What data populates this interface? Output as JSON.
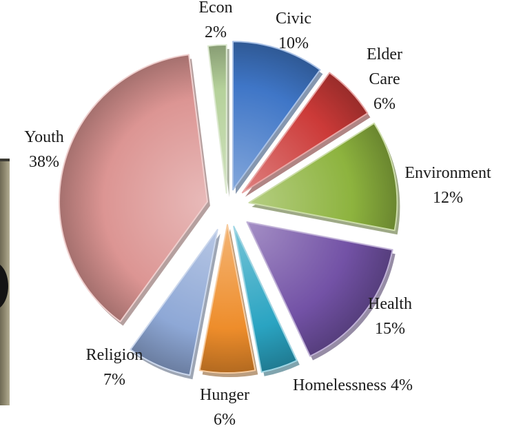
{
  "chart_data": {
    "type": "pie",
    "title": "",
    "style": "exploded-3d",
    "slices": [
      {
        "label": "Civic",
        "percent_text": "10%",
        "value": 10,
        "color": "#3f76c7"
      },
      {
        "label": "Elder Care",
        "percent_text": "6%",
        "value": 6,
        "color": "#cc3a38"
      },
      {
        "label": "Environment",
        "percent_text": "12%",
        "value": 12,
        "color": "#8db33e"
      },
      {
        "label": "Health",
        "percent_text": "15%",
        "value": 15,
        "color": "#7352a6"
      },
      {
        "label": "Homelessness",
        "percent_text": "4%",
        "value": 4,
        "color": "#2aa4c2"
      },
      {
        "label": "Hunger",
        "percent_text": "6%",
        "value": 6,
        "color": "#ee8d2b"
      },
      {
        "label": "Religion",
        "percent_text": "7%",
        "value": 7,
        "color": "#8ea8d6"
      },
      {
        "label": "Youth",
        "percent_text": "38%",
        "value": 38,
        "color": "#dc9593"
      },
      {
        "label": "Econ",
        "percent_text": "2%",
        "value": 2,
        "color": "#b5d19a"
      }
    ]
  }
}
